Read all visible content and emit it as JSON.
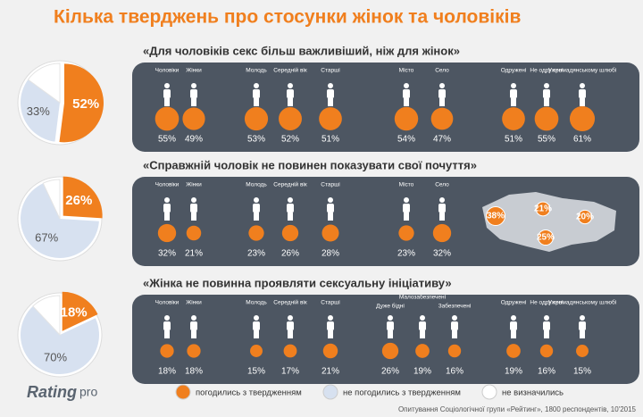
{
  "title": "Кілька тверджень про стосунки жінок та чоловіків",
  "colors": {
    "agree": "#f07f1e",
    "disagree": "#d7e1f0",
    "undecided": "#ffffff",
    "band": "#4d5662"
  },
  "sections": [
    {
      "question": "«Для чоловіків секс більш важливіший, ніж для жінок»",
      "pie": {
        "agree": 52,
        "agree_label": "52%",
        "disagree": 33,
        "disagree_label": "33%",
        "undecided": 15
      },
      "groups": [
        {
          "items": [
            {
              "label": "Чоловіки",
              "value": 55,
              "value_label": "55%"
            },
            {
              "label": "Жінки",
              "value": 49,
              "value_label": "49%"
            }
          ]
        },
        {
          "items": [
            {
              "label": "Молодь",
              "value": 53,
              "value_label": "53%"
            },
            {
              "label": "Середній вік",
              "value": 52,
              "value_label": "52%"
            },
            {
              "label": "Старші",
              "value": 51,
              "value_label": "51%"
            }
          ]
        },
        {
          "items": [
            {
              "label": "Місто",
              "value": 54,
              "value_label": "54%"
            },
            {
              "label": "Село",
              "value": 47,
              "value_label": "47%"
            }
          ]
        },
        {
          "items": [
            {
              "label": "Одружені",
              "value": 51,
              "value_label": "51%"
            },
            {
              "label": "Не одружені",
              "value": 55,
              "value_label": "55%"
            },
            {
              "label": "У громадянському шлюбі",
              "value": 61,
              "value_label": "61%"
            }
          ]
        }
      ]
    },
    {
      "question": "«Справжній чоловік не повинен показувати свої почуття»",
      "pie": {
        "agree": 26,
        "agree_label": "26%",
        "disagree": 67,
        "disagree_label": "67%",
        "undecided": 7
      },
      "groups": [
        {
          "items": [
            {
              "label": "Чоловіки",
              "value": 32,
              "value_label": "32%"
            },
            {
              "label": "Жінки",
              "value": 21,
              "value_label": "21%"
            }
          ]
        },
        {
          "items": [
            {
              "label": "Молодь",
              "value": 23,
              "value_label": "23%"
            },
            {
              "label": "Середній вік",
              "value": 26,
              "value_label": "26%"
            },
            {
              "label": "Старші",
              "value": 28,
              "value_label": "28%"
            }
          ]
        },
        {
          "items": [
            {
              "label": "Місто",
              "value": 23,
              "value_label": "23%"
            },
            {
              "label": "Село",
              "value": 32,
              "value_label": "32%"
            }
          ]
        }
      ],
      "map": {
        "values": [
          38,
          21,
          20,
          25
        ],
        "value_labels": [
          "38%",
          "21%",
          "20%",
          "25%"
        ]
      }
    },
    {
      "question": "«Жінка не повинна проявляти сексуальну ініціативу»",
      "pie": {
        "agree": 18,
        "agree_label": "18%",
        "disagree": 70,
        "disagree_label": "70%",
        "undecided": 12
      },
      "groups": [
        {
          "items": [
            {
              "label": "Чоловіки",
              "value": 18,
              "value_label": "18%"
            },
            {
              "label": "Жінки",
              "value": 18,
              "value_label": "18%"
            }
          ]
        },
        {
          "items": [
            {
              "label": "Молодь",
              "value": 15,
              "value_label": "15%"
            },
            {
              "label": "Середній вік",
              "value": 17,
              "value_label": "17%"
            },
            {
              "label": "Старші",
              "value": 21,
              "value_label": "21%"
            }
          ]
        },
        {
          "items": [
            {
              "label": "Дуже бідні",
              "value": 26,
              "value_label": "26%"
            },
            {
              "label": "Малозабезпечені",
              "value": 19,
              "value_label": "19%"
            },
            {
              "label": "Забезпечені",
              "value": 16,
              "value_label": "16%"
            }
          ]
        },
        {
          "items": [
            {
              "label": "Одружені",
              "value": 19,
              "value_label": "19%"
            },
            {
              "label": "Не одружені",
              "value": 16,
              "value_label": "16%"
            },
            {
              "label": "У громадянському шлюбі",
              "value": 15,
              "value_label": "15%"
            }
          ]
        }
      ]
    }
  ],
  "legend": [
    "погодились з твердженням",
    "не погодились з твердженням",
    "не визначились"
  ],
  "logo": {
    "main": "Rating",
    "sub": "pro"
  },
  "source": "Опитування Соціологічної групи «Рейтинг», 1800 респондентів, 10'2015"
}
